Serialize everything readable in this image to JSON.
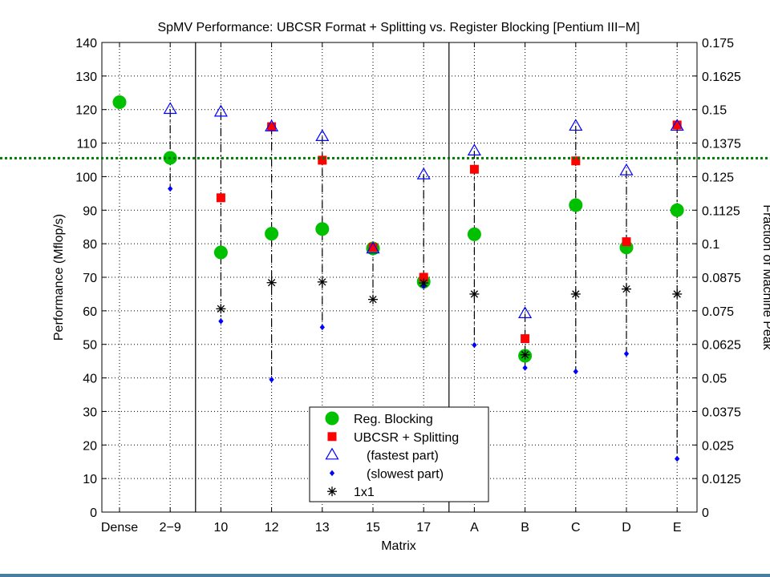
{
  "chart_data": {
    "type": "scatter",
    "title": "SpMV Performance: UBCSR Format + Splitting vs. Register Blocking [Pentium III−M]",
    "xlabel": "Matrix",
    "ylabel": "Performance (Mflop/s)",
    "y2label": "Fraction of Machine Peak",
    "categories": [
      "Dense",
      "2−9",
      "10",
      "12",
      "13",
      "15",
      "17",
      "A",
      "B",
      "C",
      "D",
      "E"
    ],
    "ylim": [
      0,
      140
    ],
    "yticks": [
      "0",
      "10",
      "20",
      "30",
      "40",
      "50",
      "60",
      "70",
      "80",
      "90",
      "100",
      "110",
      "120",
      "130",
      "140"
    ],
    "y2lim": [
      0,
      0.175
    ],
    "y2ticks": [
      "0",
      "0.0125",
      "0.025",
      "0.0375",
      "0.05",
      "0.0625",
      "0.075",
      "0.0875",
      "0.1",
      "0.1125",
      "0.125",
      "0.1375",
      "0.15",
      "0.1625",
      "0.175"
    ],
    "grid": true,
    "reference_line": 105.5,
    "group_separators_after": [
      "2−9",
      "17"
    ],
    "legend_position": "bottom-center",
    "series": [
      {
        "name": "Reg. Blocking",
        "marker": "circle",
        "color": "#00c000",
        "values": [
          122.2,
          105.6,
          77.4,
          83.0,
          84.4,
          78.6,
          68.7,
          82.8,
          46.6,
          91.5,
          78.9,
          90.0
        ]
      },
      {
        "name": "UBCSR + Splitting",
        "marker": "square",
        "color": "#ff0000",
        "values": [
          null,
          null,
          93.7,
          114.9,
          104.9,
          78.9,
          70.0,
          102.2,
          51.7,
          104.7,
          80.6,
          115.4
        ]
      },
      {
        "name": "(fastest part)",
        "marker": "triangle",
        "color": "#0000ff",
        "values": [
          null,
          120.1,
          119.3,
          114.9,
          112.0,
          78.5,
          100.6,
          107.7,
          59.2,
          115.1,
          101.8,
          115.1
        ]
      },
      {
        "name": "(slowest part)",
        "marker": "dot",
        "color": "#0000ff",
        "values": [
          null,
          96.4,
          56.9,
          39.5,
          55.1,
          null,
          67.3,
          49.8,
          43.0,
          41.9,
          47.2,
          15.9
        ]
      },
      {
        "name": "1x1",
        "marker": "asterisk",
        "color": "#000000",
        "values": [
          null,
          null,
          60.6,
          68.4,
          68.6,
          63.4,
          68.3,
          65.0,
          46.9,
          65.0,
          66.5,
          65.0
        ]
      }
    ]
  }
}
